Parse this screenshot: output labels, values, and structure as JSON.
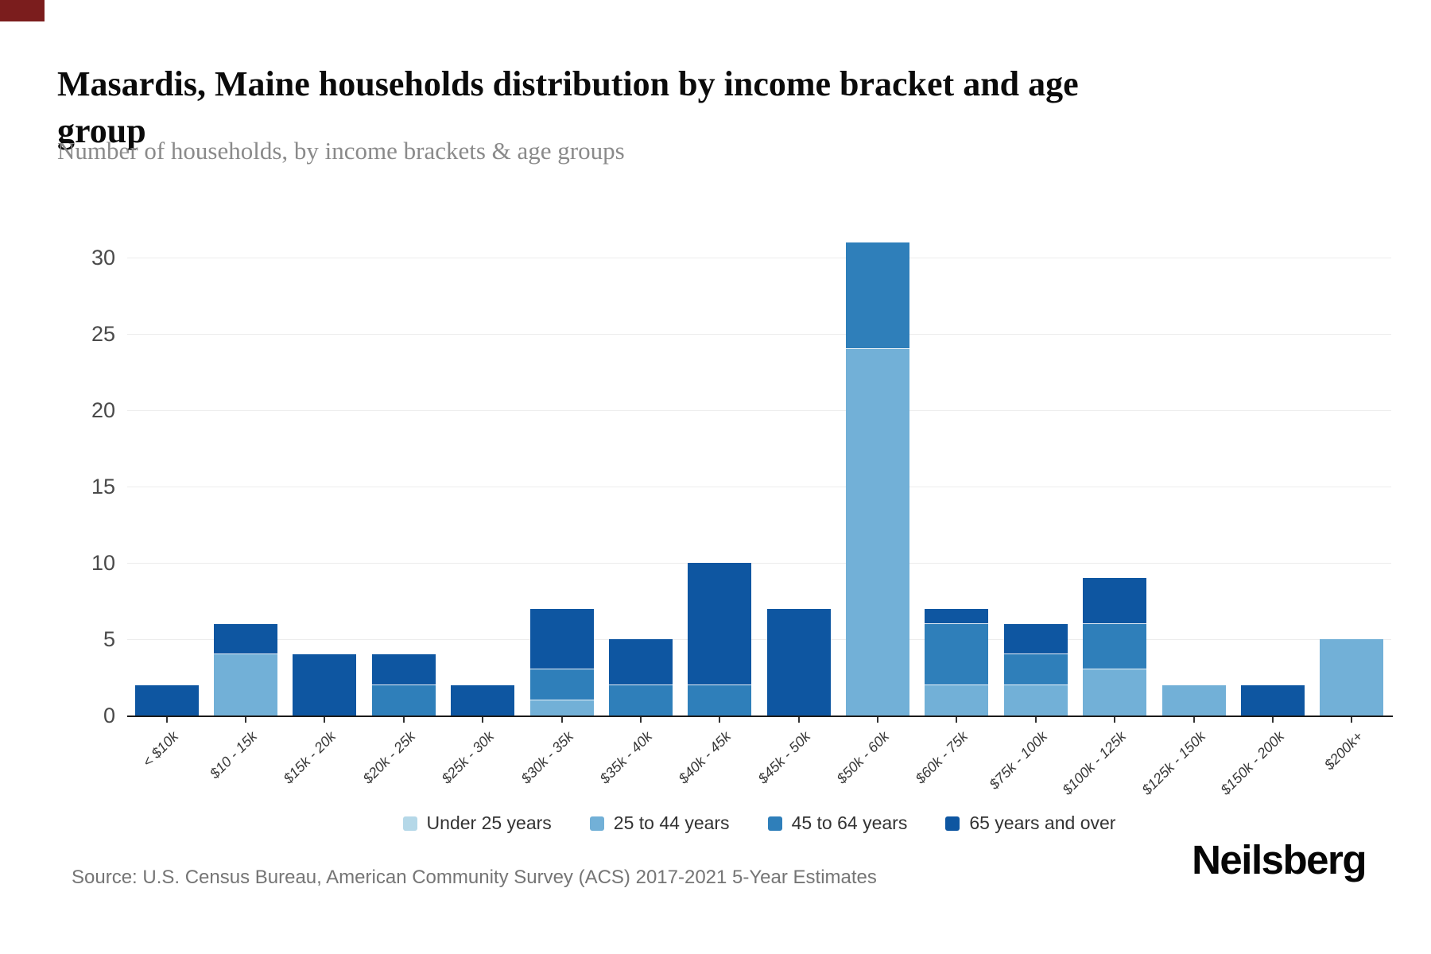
{
  "page": {
    "title": "Masardis, Maine households distribution by income bracket and age group",
    "subtitle": "Number of households, by income brackets & age groups",
    "source": "Source: U.S. Census Bureau, American Community Survey (ACS) 2017-2021 5-Year Estimates",
    "brand": "Neilsberg"
  },
  "colors": {
    "accent_corner": "#7b1d1d",
    "gridline": "#ededed",
    "axis_line": "#1b1b1b",
    "axis_text": "#4a4a4a",
    "x_label_text": "#383838",
    "legend_text": "#333333",
    "subtitle_text": "#8a8a8a",
    "source_text": "#757575"
  },
  "chart_data": {
    "type": "bar",
    "stacked": true,
    "title": "Masardis, Maine households distribution by income bracket and age group",
    "subtitle": "Number of households, by income brackets & age groups",
    "xlabel": "",
    "ylabel": "",
    "grid": true,
    "legend_position": "bottom",
    "yticks": [
      0,
      5,
      10,
      15,
      20,
      25,
      30
    ],
    "ylim": [
      0,
      31.25
    ],
    "categories": [
      "< $10k",
      "$10 - 15k",
      "$15k - 20k",
      "$20k - 25k",
      "$25k - 30k",
      "$30k - 35k",
      "$35k - 40k",
      "$40k - 45k",
      "$45k - 50k",
      "$50k - 60k",
      "$60k - 75k",
      "$75k - 100k",
      "$100k - 125k",
      "$125k - 150k",
      "$150k - 200k",
      "$200k+"
    ],
    "series": [
      {
        "name": "Under 25 years",
        "color": "#b5d8e8",
        "values": [
          0,
          0,
          0,
          0,
          0,
          0,
          0,
          0,
          0,
          0,
          0,
          0,
          0,
          0,
          0,
          0
        ]
      },
      {
        "name": "25 to 44 years",
        "color": "#72b0d7",
        "values": [
          0,
          4,
          0,
          0,
          0,
          1,
          0,
          0,
          0,
          24,
          2,
          2,
          3,
          2,
          0,
          5
        ]
      },
      {
        "name": "45 to 64 years",
        "color": "#2f7fba",
        "values": [
          0,
          0,
          0,
          2,
          0,
          2,
          2,
          2,
          0,
          7,
          4,
          2,
          3,
          0,
          0,
          0
        ]
      },
      {
        "name": "65 years and over",
        "color": "#0e56a1",
        "values": [
          2,
          2,
          4,
          2,
          2,
          4,
          3,
          8,
          7,
          0,
          1,
          2,
          3,
          0,
          2,
          0
        ]
      }
    ],
    "totals": [
      2,
      6,
      4,
      4,
      2,
      7,
      5,
      10,
      7,
      31,
      7,
      6,
      9,
      2,
      2,
      5
    ]
  }
}
